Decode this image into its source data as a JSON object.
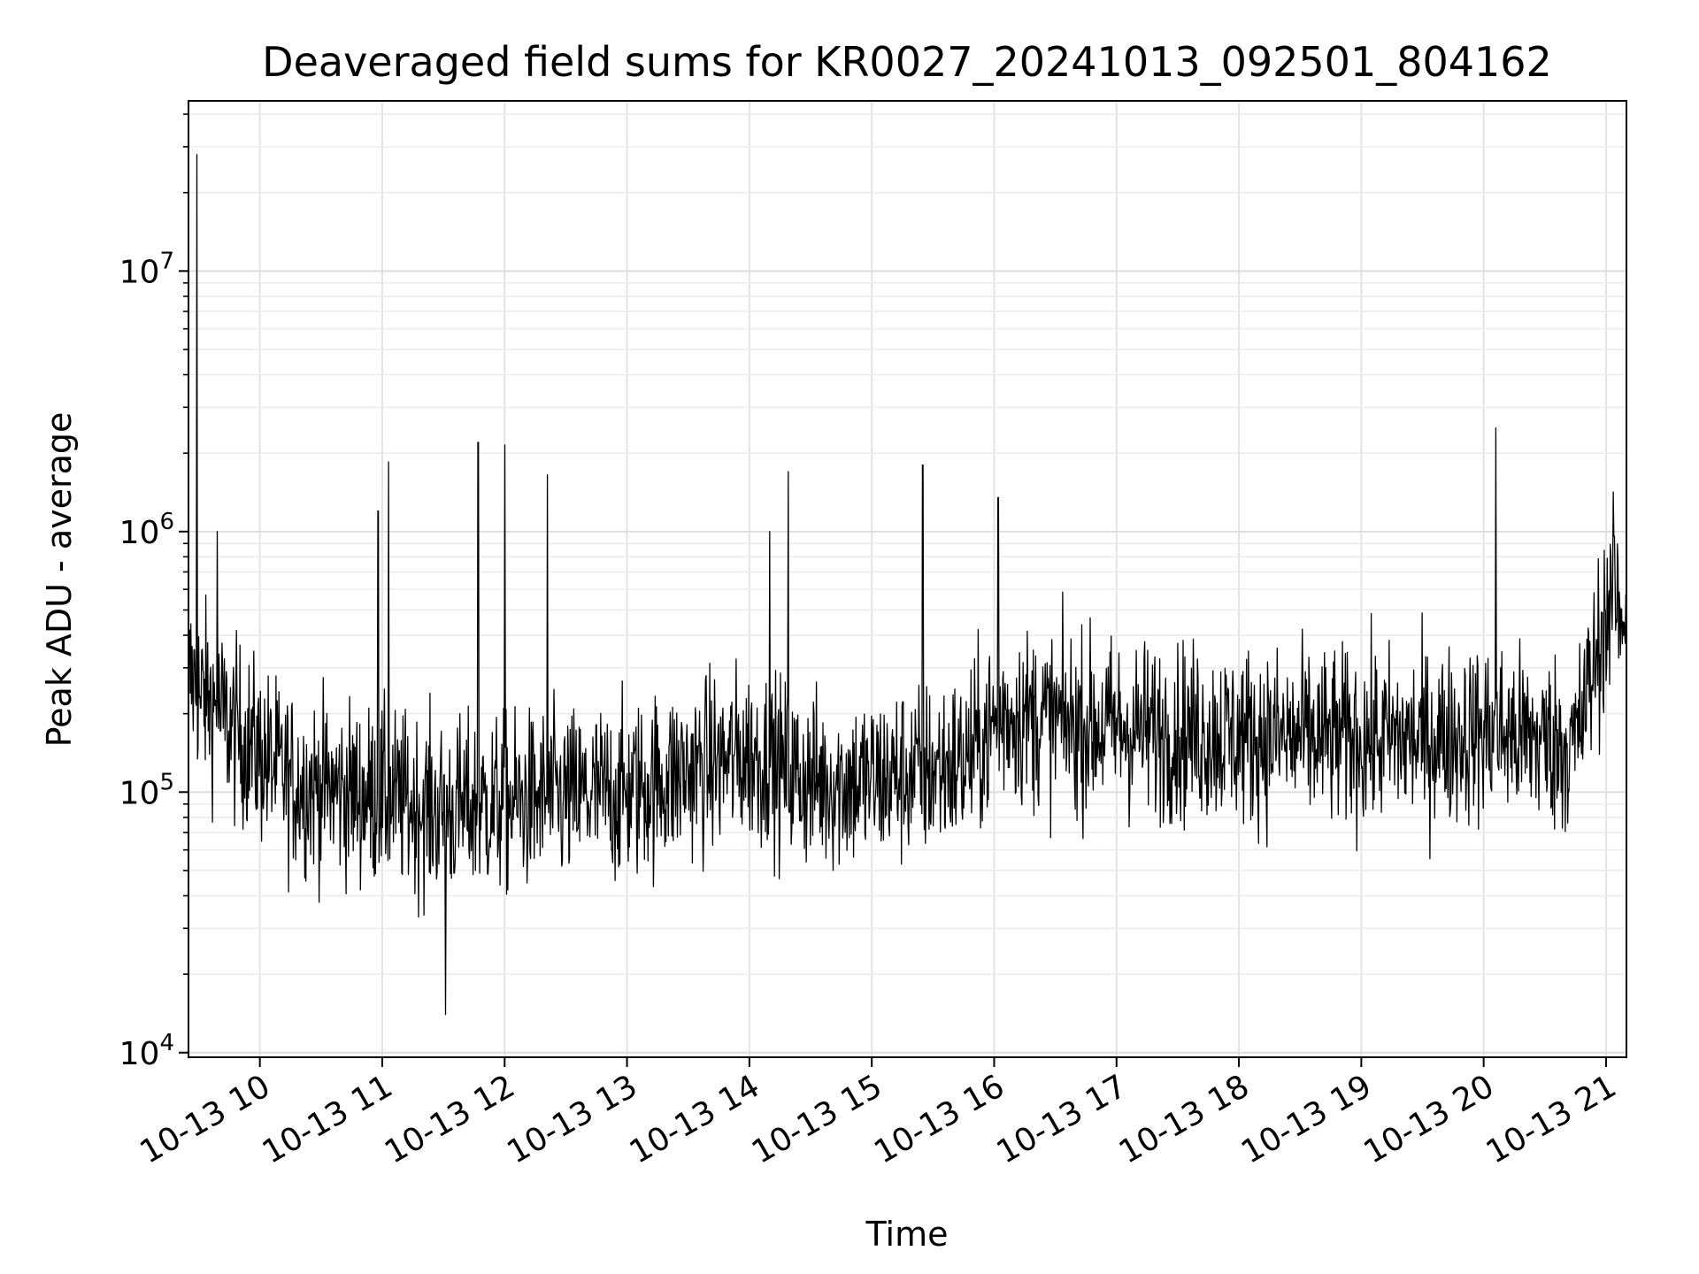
{
  "chart_data": {
    "type": "line",
    "title": "Deaveraged field sums for KR0027_20241013_092501_804162",
    "xlabel": "Time",
    "ylabel": "Peak ADU - average",
    "yscale": "log",
    "ylim": [
      9600,
      45000000
    ],
    "xlim": [
      "2024-10-13T09:25",
      "2024-10-13T21:10"
    ],
    "grid": true,
    "line_color": "#000000",
    "x_ticks": [
      {
        "label": "10-13 10",
        "time": "2024-10-13T10:00"
      },
      {
        "label": "10-13 11",
        "time": "2024-10-13T11:00"
      },
      {
        "label": "10-13 12",
        "time": "2024-10-13T12:00"
      },
      {
        "label": "10-13 13",
        "time": "2024-10-13T13:00"
      },
      {
        "label": "10-13 14",
        "time": "2024-10-13T14:00"
      },
      {
        "label": "10-13 15",
        "time": "2024-10-13T15:00"
      },
      {
        "label": "10-13 16",
        "time": "2024-10-13T16:00"
      },
      {
        "label": "10-13 17",
        "time": "2024-10-13T17:00"
      },
      {
        "label": "10-13 18",
        "time": "2024-10-13T18:00"
      },
      {
        "label": "10-13 19",
        "time": "2024-10-13T19:00"
      },
      {
        "label": "10-13 20",
        "time": "2024-10-13T20:00"
      },
      {
        "label": "10-13 21",
        "time": "2024-10-13T21:00"
      }
    ],
    "y_ticks": [
      {
        "base": "10",
        "exp": "4",
        "value": 10000
      },
      {
        "base": "10",
        "exp": "5",
        "value": 100000
      },
      {
        "base": "10",
        "exp": "6",
        "value": 1000000
      },
      {
        "base": "10",
        "exp": "7",
        "value": 10000000
      }
    ],
    "series": [
      {
        "baseline": [
          [
            "2024-10-13T09:25",
            280000
          ],
          [
            "2024-10-13T09:45",
            180000
          ],
          [
            "2024-10-13T10:15",
            110000
          ],
          [
            "2024-10-13T11:00",
            95000
          ],
          [
            "2024-10-13T11:30",
            85000
          ],
          [
            "2024-10-13T12:00",
            90000
          ],
          [
            "2024-10-13T12:30",
            95000
          ],
          [
            "2024-10-13T13:00",
            100000
          ],
          [
            "2024-10-13T13:30",
            120000
          ],
          [
            "2024-10-13T14:00",
            140000
          ],
          [
            "2024-10-13T14:30",
            110000
          ],
          [
            "2024-10-13T15:00",
            110000
          ],
          [
            "2024-10-13T15:45",
            130000
          ],
          [
            "2024-10-13T16:05",
            200000
          ],
          [
            "2024-10-13T16:45",
            180000
          ],
          [
            "2024-10-13T17:30",
            170000
          ],
          [
            "2024-10-13T18:30",
            160000
          ],
          [
            "2024-10-13T19:30",
            160000
          ],
          [
            "2024-10-13T20:05",
            170000
          ],
          [
            "2024-10-13T20:45",
            150000
          ],
          [
            "2024-10-13T21:00",
            480000
          ],
          [
            "2024-10-13T21:10",
            500000
          ]
        ],
        "spikes": [
          [
            "2024-10-13T09:29",
            28000000
          ],
          [
            "2024-10-13T09:31",
            210000
          ],
          [
            "2024-10-13T09:39",
            1000000
          ],
          [
            "2024-10-13T10:58",
            1200000
          ],
          [
            "2024-10-13T11:03",
            1850000
          ],
          [
            "2024-10-13T11:31",
            14000
          ],
          [
            "2024-10-13T11:47",
            2200000
          ],
          [
            "2024-10-13T12:00",
            2150000
          ],
          [
            "2024-10-13T12:21",
            1650000
          ],
          [
            "2024-10-13T14:10",
            1000000
          ],
          [
            "2024-10-13T14:19",
            1700000
          ],
          [
            "2024-10-13T15:25",
            1800000
          ],
          [
            "2024-10-13T16:02",
            1350000
          ],
          [
            "2024-10-13T20:06",
            2500000
          ],
          [
            "2024-10-13T21:04",
            960000
          ]
        ]
      }
    ]
  }
}
